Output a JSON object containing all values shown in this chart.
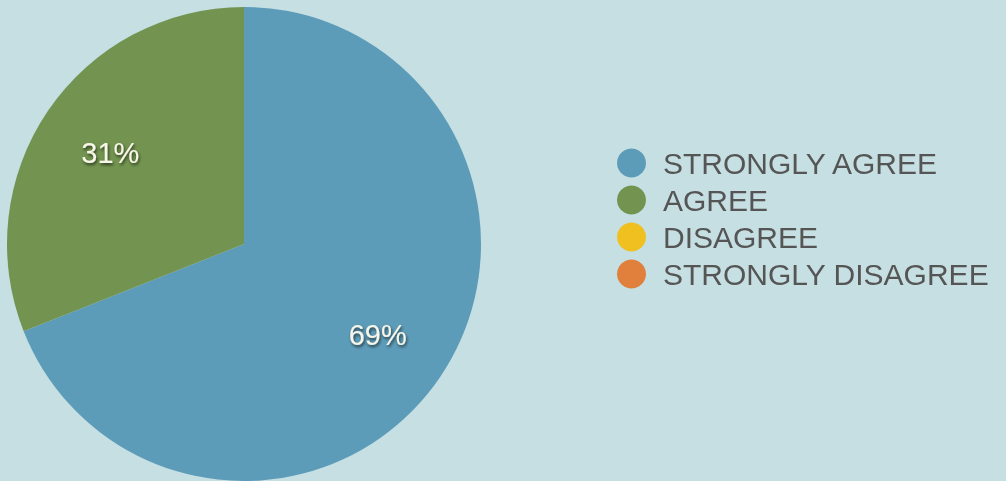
{
  "chart_data": {
    "type": "pie",
    "categories": [
      "STRONGLY AGREE",
      "AGREE",
      "DISAGREE",
      "STRONGLY DISAGREE"
    ],
    "values": [
      69,
      31,
      0,
      0
    ],
    "colors": [
      "#5d9cb9",
      "#739450",
      "#f0c020",
      "#e0803c"
    ],
    "value_labels": [
      "69%",
      "31%",
      null,
      null
    ],
    "legend": "right"
  }
}
